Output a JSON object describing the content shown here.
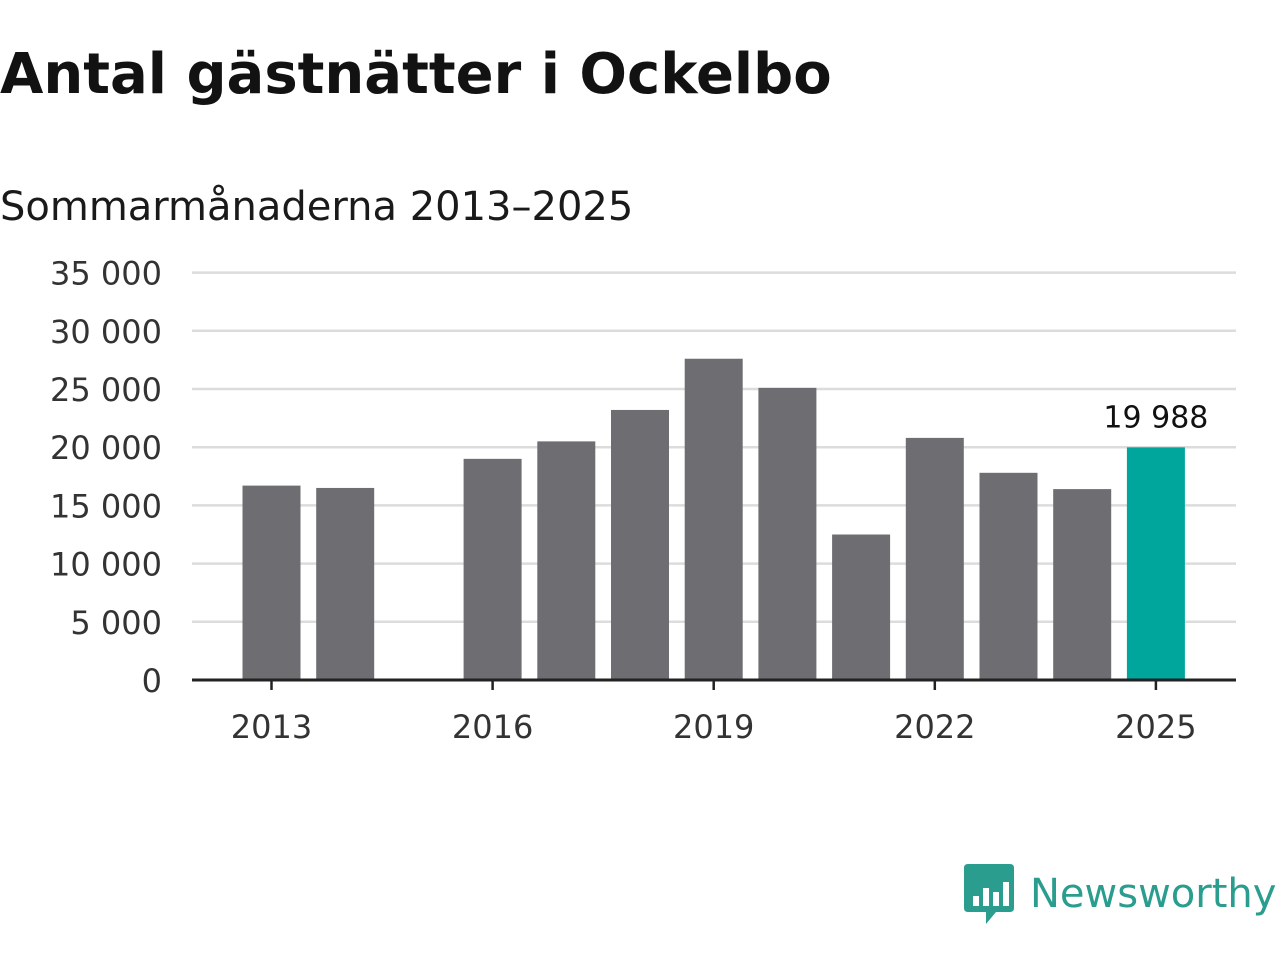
{
  "header": {
    "title": "Antal gästnätter i Ockelbo",
    "subtitle": "Sommarmånaderna 2013–2025"
  },
  "chart_data": {
    "type": "bar",
    "categories": [
      "2013",
      "2014",
      "2015",
      "2016",
      "2017",
      "2018",
      "2019",
      "2020",
      "2021",
      "2022",
      "2023",
      "2024",
      "2025"
    ],
    "values": [
      16700,
      16500,
      null,
      19000,
      20500,
      23200,
      27600,
      25100,
      12500,
      20800,
      17800,
      16400,
      19988
    ],
    "x_tick_labels": [
      "2013",
      "2016",
      "2019",
      "2022",
      "2025"
    ],
    "y_ticks": [
      0,
      5000,
      10000,
      15000,
      20000,
      25000,
      30000,
      35000
    ],
    "y_tick_labels": [
      "0",
      "5 000",
      "10 000",
      "15 000",
      "20 000",
      "25 000",
      "30 000",
      "35 000"
    ],
    "ylim": [
      0,
      35000
    ],
    "title": "Antal gästnätter i Ockelbo",
    "subtitle": "Sommarmånaderna 2013–2025",
    "xlabel": "",
    "ylabel": "",
    "grid": true,
    "legend": "none",
    "annotations": [
      {
        "category": "2025",
        "text": "19 988"
      }
    ],
    "colors": {
      "bar": "#6e6d72",
      "highlight": "#00a69c",
      "grid": "#dcdcdc",
      "axis": "#222222"
    },
    "highlight_category": "2025"
  },
  "branding": {
    "logo_text": "Newsworthy",
    "logo_icon": "newsworthy-chart-bubble-icon",
    "logo_color": "#2a9d8f"
  }
}
